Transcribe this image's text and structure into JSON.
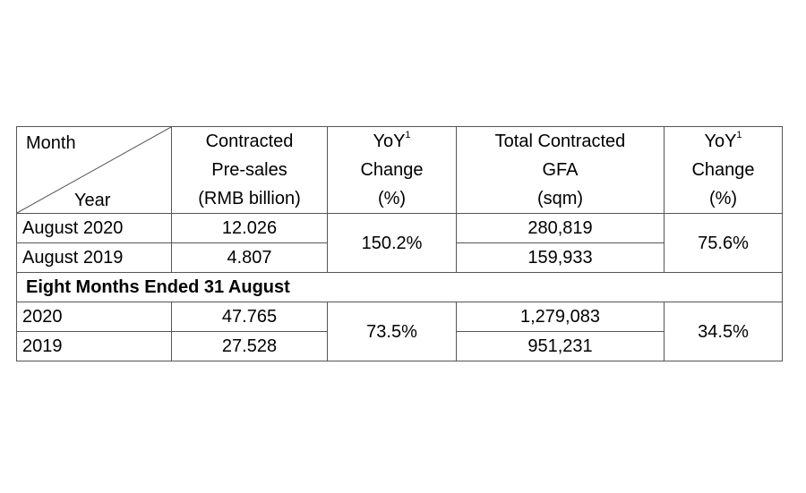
{
  "header": {
    "month": "Month",
    "year": "Year",
    "col_presales": [
      "Contracted",
      "Pre-sales",
      "(RMB billion)"
    ],
    "col_yoy1": {
      "yoy": "YoY",
      "sup": "1",
      "change": "Change",
      "pct": "(%)"
    },
    "col_gfa": [
      "Total Contracted",
      "GFA",
      "(sqm)"
    ],
    "col_yoy2": {
      "yoy": "YoY",
      "sup": "1",
      "change": "Change",
      "pct": "(%)"
    }
  },
  "monthly": {
    "rows": [
      {
        "label": "August 2020",
        "presales": "12.026",
        "gfa": "280,819"
      },
      {
        "label": "August 2019",
        "presales": "4.807",
        "gfa": "159,933"
      }
    ],
    "yoy_presales": "150.2%",
    "yoy_gfa": "75.6%"
  },
  "eight_months": {
    "section_label": "Eight Months Ended 31 August",
    "rows": [
      {
        "label": "2020",
        "presales": "47.765",
        "gfa": "1,279,083"
      },
      {
        "label": "2019",
        "presales": "27.528",
        "gfa": "951,231"
      }
    ],
    "yoy_presales": "73.5%",
    "yoy_gfa": "34.5%"
  }
}
